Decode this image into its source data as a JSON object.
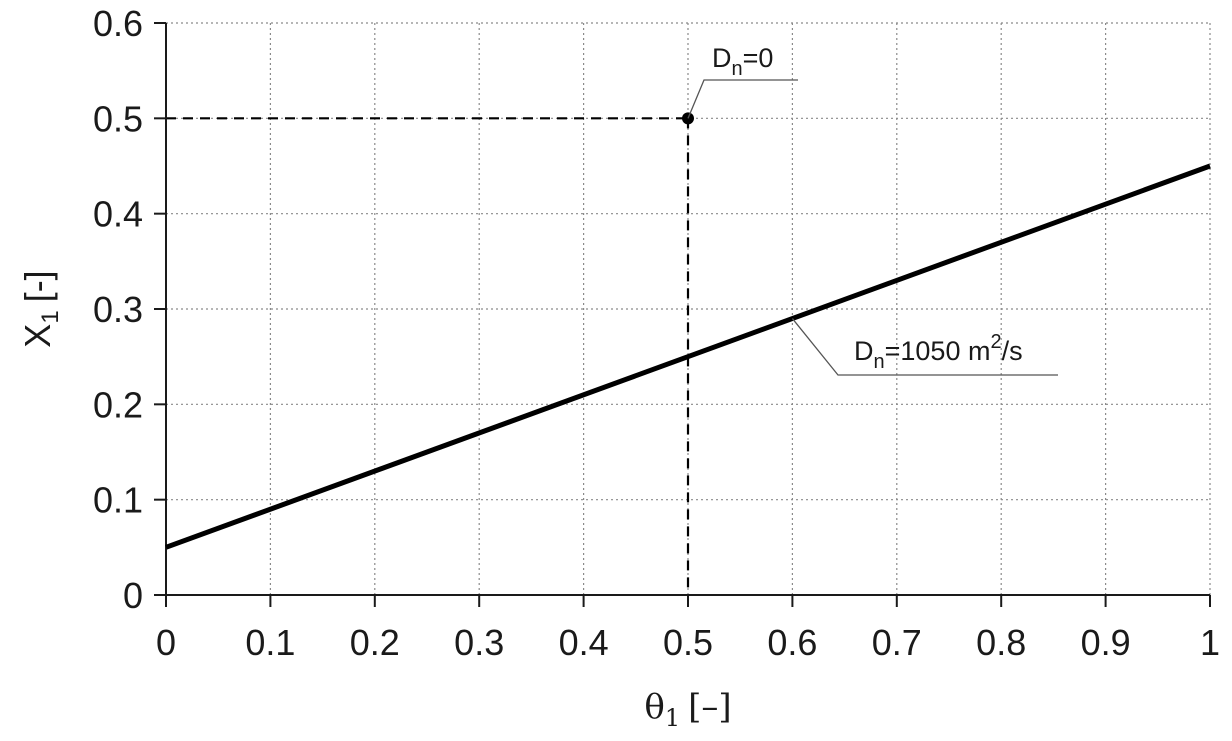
{
  "chart_data": {
    "type": "line",
    "xlabel": {
      "symbol": "θ",
      "sub": "1",
      "unit": "[–]"
    },
    "ylabel": {
      "symbol": "X",
      "sub": "1",
      "unit": "[-]"
    },
    "xlim": [
      0,
      1
    ],
    "ylim": [
      0,
      0.6
    ],
    "xticks": [
      "0",
      "0.1",
      "0.2",
      "0.3",
      "0.4",
      "0.5",
      "0.6",
      "0.7",
      "0.8",
      "0.9",
      "1"
    ],
    "yticks": [
      "0",
      "0.1",
      "0.2",
      "0.3",
      "0.4",
      "0.5",
      "0.6"
    ],
    "grid": true,
    "series": [
      {
        "x": [
          0,
          1
        ],
        "y": [
          0.05,
          0.45
        ],
        "color": "#000000"
      }
    ],
    "point": {
      "x": 0.5,
      "y": 0.5
    },
    "annotations": [
      {
        "base": "D",
        "sub": "n",
        "rest": "=0",
        "target": "point"
      },
      {
        "base": "D",
        "sub": "n",
        "rest": "=1050 m",
        "sup": "2",
        "tail": "/s",
        "target": "line",
        "target_x": 0.6
      }
    ]
  }
}
